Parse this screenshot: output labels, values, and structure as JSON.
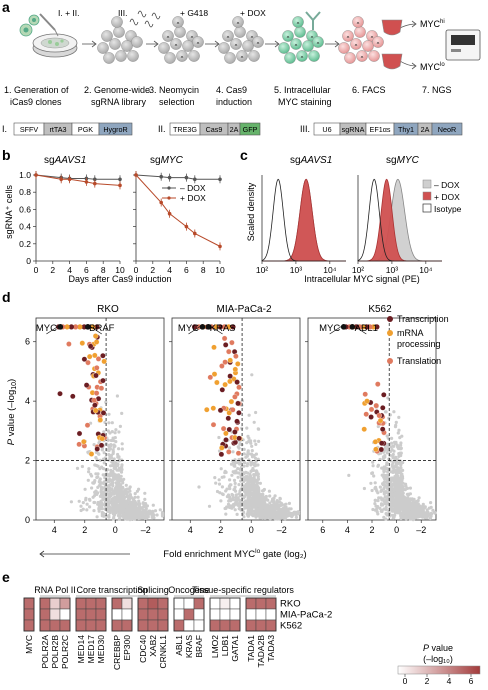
{
  "panel_labels": {
    "a": "a",
    "b": "b",
    "c": "c",
    "d": "d",
    "e": "e"
  },
  "panel_a": {
    "top_labels": {
      "i_ii": "I. + II.",
      "iii": "III.",
      "g418": "+ G418",
      "dox": "+ DOX",
      "myc_hi_base": "MYC",
      "myc_hi_sup": "hi",
      "myc_lo_base": "MYC",
      "myc_lo_sup": "lo"
    },
    "steps": [
      {
        "line1": "1. Generation of",
        "line2": "iCas9 clones"
      },
      {
        "line1": "2. Genome-wide",
        "line2": "sgRNA library"
      },
      {
        "line1": "3. Neomycin",
        "line2": "selection"
      },
      {
        "line1": "4. Cas9",
        "line2": "induction"
      },
      {
        "line1": "5. Intracellular",
        "line2": "MYC staining"
      },
      {
        "line1": "6. FACS",
        "line2": ""
      },
      {
        "line1": "7. NGS",
        "line2": ""
      }
    ],
    "constructs": [
      {
        "label": "I.",
        "parts": [
          "SFFV",
          "rtTA3",
          "PGK",
          "HygroR"
        ]
      },
      {
        "label": "II.",
        "parts": [
          "TRE3G",
          "Cas9",
          "2A",
          "GFP"
        ]
      },
      {
        "label": "III.",
        "parts": [
          "U6",
          "sgRNA",
          "EF1αs",
          "Thy1",
          "2A",
          "NeoR"
        ]
      }
    ],
    "colors": {
      "gray_box": "#bfbfbf",
      "dark_box": "#7f7f7f",
      "hygro": "#8fa6bf",
      "green": "#66b36b",
      "cell_gray": "#a6a6a6",
      "cell_green": "#66c299",
      "cell_pink": "#e8a0a0",
      "myc_red": "#d05050"
    }
  },
  "panel_b": {
    "ylabel": "sgRNA⁺ cells",
    "xlabel": "Days after Cas9 induction",
    "title_left_prefix": "sg",
    "title_left_name": "AAVS1",
    "title_right_prefix": "sg",
    "title_right_name": "MYC",
    "legend": [
      "– DOX",
      "+ DOX"
    ],
    "yticks": [
      "0",
      "0.2",
      "0.4",
      "0.6",
      "0.8",
      "1.0"
    ],
    "xticks": [
      "0",
      "2",
      "4",
      "6",
      "8",
      "10"
    ]
  },
  "panel_c": {
    "ylabel": "Scaled density",
    "xlabel": "Intracellular MYC signal (PE)",
    "title_left_prefix": "sg",
    "title_left_name": "AAVS1",
    "title_right_prefix": "sg",
    "title_right_name": "MYC",
    "legend": [
      "– DOX",
      "+ DOX",
      "Isotype"
    ],
    "xticks": [
      "10²",
      "10³",
      "10⁴"
    ]
  },
  "panel_d": {
    "ylabel": "P value (–log₁₀)",
    "xlabel": "Fold enrichment MYC¹ᵒ gate (log₂)",
    "xlabel_base": "Fold enrichment MYC",
    "xlabel_sup": "lo",
    "xlabel_tail": " gate (log₂)",
    "titles": [
      "RKO",
      "MIA-PaCa-2",
      "K562"
    ],
    "gene_labels": [
      [
        "MYC",
        "BRAF"
      ],
      [
        "MYC",
        "KRAS"
      ],
      [
        "MYC",
        "ABL1"
      ]
    ],
    "yticks": [
      "0",
      "2",
      "4",
      "6"
    ],
    "xticks": [
      [
        "4",
        "2",
        "0",
        "–2"
      ],
      [
        "4",
        "2",
        "0",
        "–2"
      ],
      [
        "6",
        "4",
        "2",
        "0",
        "–2"
      ]
    ],
    "legend": [
      "Transcription",
      "mRNA processing",
      "Translation"
    ],
    "colors": {
      "transcription": "#6b1d22",
      "mrna": "#f0a030",
      "translation": "#e07a5f",
      "background": "#cccccc"
    }
  },
  "panel_e": {
    "groups": [
      "RNA Pol II",
      "Core transcription",
      "Splicing",
      "Oncogene",
      "Tissue-specific regulators"
    ],
    "genes": [
      "MYC",
      "POLR2A",
      "POLR2B",
      "POLR2C",
      "MED14",
      "MED17",
      "MED30",
      "CREBBP",
      "EP300",
      "CDC40",
      "XAB2",
      "CRNKL1",
      "ABL1",
      "KRAS",
      "BRAF",
      "LMO2",
      "LDB1",
      "GATA1",
      "TADA1",
      "TADA2B",
      "TADA3"
    ],
    "rows": [
      "RKO",
      "MIA-PaCa-2",
      "K562"
    ],
    "values": [
      [
        4.5,
        4.5,
        1.5,
        3.0,
        4.5,
        4.5,
        4.5,
        4.5,
        1.0,
        4.5,
        5.0,
        4.5,
        0.0,
        0.0,
        4.5,
        0.0,
        0.5,
        0.0,
        4.5,
        4.5,
        4.5
      ],
      [
        4.5,
        4.5,
        1.0,
        0.0,
        4.5,
        4.5,
        4.5,
        0.0,
        0.0,
        4.5,
        4.5,
        4.5,
        0.0,
        4.5,
        0.0,
        0.0,
        0.0,
        0.0,
        0.0,
        0.0,
        0.0
      ],
      [
        4.5,
        4.5,
        4.5,
        4.5,
        4.5,
        4.5,
        4.5,
        4.5,
        4.5,
        4.5,
        4.5,
        4.5,
        4.5,
        0.0,
        0.0,
        4.5,
        4.5,
        4.5,
        4.5,
        4.5,
        4.5
      ]
    ],
    "colorbar_title_1": "P value",
    "colorbar_title_2": "(–log₁₀)",
    "colorbar_ticks": [
      "0",
      "2",
      "4",
      "6"
    ],
    "colors": {
      "low": "#ffffff",
      "high": "#a33b3b"
    }
  },
  "chart_data": [
    {
      "type": "line",
      "title": "sgAAVS1",
      "xlabel": "Days after Cas9 induction",
      "ylabel": "sgRNA+ cells",
      "xlim": [
        0,
        10
      ],
      "ylim": [
        0,
        1.0
      ],
      "x": [
        0,
        3,
        4,
        6,
        7,
        10
      ],
      "series": [
        {
          "name": "– DOX",
          "values": [
            1.0,
            0.97,
            0.96,
            0.96,
            0.95,
            0.95
          ]
        },
        {
          "name": "+ DOX",
          "values": [
            1.0,
            0.95,
            0.95,
            0.92,
            0.9,
            0.88
          ]
        }
      ]
    },
    {
      "type": "line",
      "title": "sgMYC",
      "xlabel": "Days after Cas9 induction",
      "ylabel": "sgRNA+ cells",
      "xlim": [
        0,
        10
      ],
      "ylim": [
        0,
        1.0
      ],
      "x": [
        0,
        3,
        4,
        6,
        7,
        10
      ],
      "series": [
        {
          "name": "– DOX",
          "values": [
            1.0,
            0.98,
            0.97,
            0.97,
            0.95,
            0.95
          ]
        },
        {
          "name": "+ DOX",
          "values": [
            1.0,
            0.68,
            0.55,
            0.4,
            0.32,
            0.17
          ]
        }
      ]
    },
    {
      "type": "area",
      "title": "sgAAVS1",
      "xlabel": "Intracellular MYC signal (PE)",
      "ylabel": "Scaled density",
      "x_scale": "log",
      "xlim": [
        100,
        30000
      ],
      "series": [
        {
          "name": "– DOX",
          "peak": 2000,
          "width": 0.18
        },
        {
          "name": "+ DOX",
          "peak": 2000,
          "width": 0.18
        },
        {
          "name": "Isotype",
          "peak": 300,
          "width": 0.15
        }
      ]
    },
    {
      "type": "area",
      "title": "sgMYC",
      "xlabel": "Intracellular MYC signal (PE)",
      "ylabel": "Scaled density",
      "x_scale": "log",
      "xlim": [
        100,
        30000
      ],
      "series": [
        {
          "name": "– DOX",
          "peak": 1500,
          "width": 0.2
        },
        {
          "name": "+ DOX",
          "peak": 700,
          "width": 0.16
        },
        {
          "name": "Isotype",
          "peak": 300,
          "width": 0.15
        }
      ]
    },
    {
      "type": "scatter",
      "title": "RKO",
      "xlabel": "Fold enrichment MYClo gate (log2)",
      "ylabel": "P value (–log10)",
      "xlim": [
        5,
        -3.5
      ],
      "ylim": [
        0,
        7
      ],
      "thresholds": {
        "x": 0.6,
        "y": 2
      },
      "highlighted": [
        {
          "label": "MYC",
          "x": 3.6,
          "y": 6.5
        },
        {
          "label": "BRAF",
          "x": 1.8,
          "y": 6.5
        }
      ]
    },
    {
      "type": "scatter",
      "title": "MIA-PaCa-2",
      "xlabel": "Fold enrichment MYClo gate (log2)",
      "ylabel": "P value (–log10)",
      "xlim": [
        5,
        -3.5
      ],
      "ylim": [
        0,
        7
      ],
      "thresholds": {
        "x": 0.6,
        "y": 2
      },
      "highlighted": [
        {
          "label": "MYC",
          "x": 3.2,
          "y": 6.5
        },
        {
          "label": "KRAS",
          "x": 2.8,
          "y": 6.5
        }
      ]
    },
    {
      "type": "scatter",
      "title": "K562",
      "xlabel": "Fold enrichment MYClo gate (log2)",
      "ylabel": "P value (–log10)",
      "xlim": [
        7,
        -3.5
      ],
      "ylim": [
        0,
        7
      ],
      "thresholds": {
        "x": 0.6,
        "y": 2
      },
      "highlighted": [
        {
          "label": "MYC",
          "x": 4.3,
          "y": 6.5
        },
        {
          "label": "ABL1",
          "x": 3.6,
          "y": 6.5
        }
      ]
    },
    {
      "type": "heatmap",
      "rows": [
        "RKO",
        "MIA-PaCa-2",
        "K562"
      ],
      "columns": [
        "MYC",
        "POLR2A",
        "POLR2B",
        "POLR2C",
        "MED14",
        "MED17",
        "MED30",
        "CREBBP",
        "EP300",
        "CDC40",
        "XAB2",
        "CRNKL1",
        "ABL1",
        "KRAS",
        "BRAF",
        "LMO2",
        "LDB1",
        "GATA1",
        "TADA1",
        "TADA2B",
        "TADA3"
      ],
      "color_scale": {
        "title": "P value (–log10)",
        "range": [
          0,
          6
        ]
      }
    }
  ]
}
